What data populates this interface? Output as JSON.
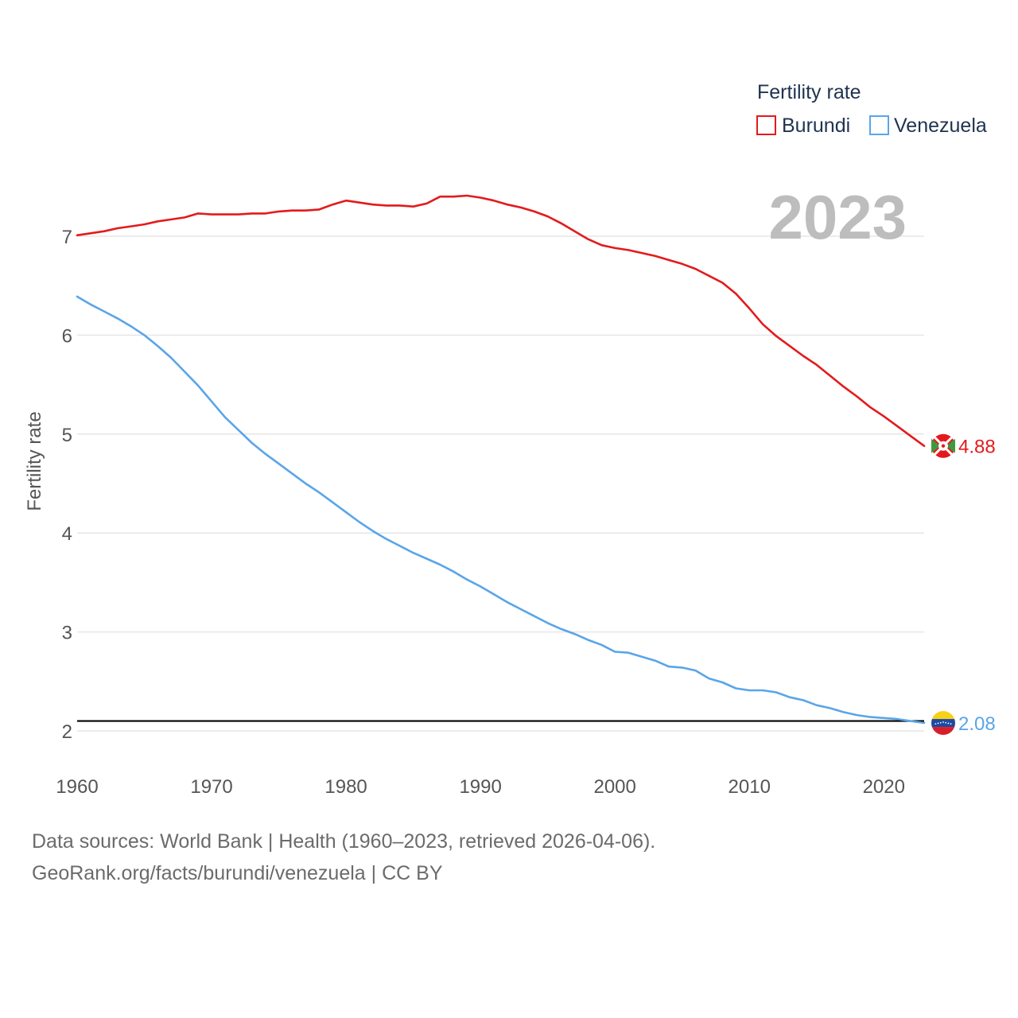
{
  "chart_data": {
    "type": "line",
    "title": "Fertility rate",
    "ylabel": "Fertility rate",
    "xlabel": "",
    "year_label": "2023",
    "xlim": [
      1960,
      2023
    ],
    "ylim": [
      1.9,
      7.6
    ],
    "x_ticks": [
      "1960",
      "1970",
      "1980",
      "1990",
      "2000",
      "2010",
      "2020"
    ],
    "y_ticks": [
      "2",
      "3",
      "4",
      "5",
      "6",
      "7"
    ],
    "reference_line": 2.1,
    "legend": [
      "Burundi",
      "Venezuela"
    ],
    "x": [
      1960,
      1961,
      1962,
      1963,
      1964,
      1965,
      1966,
      1967,
      1968,
      1969,
      1970,
      1971,
      1972,
      1973,
      1974,
      1975,
      1976,
      1977,
      1978,
      1979,
      1980,
      1981,
      1982,
      1983,
      1984,
      1985,
      1986,
      1987,
      1988,
      1989,
      1990,
      1991,
      1992,
      1993,
      1994,
      1995,
      1996,
      1997,
      1998,
      1999,
      2000,
      2001,
      2002,
      2003,
      2004,
      2005,
      2006,
      2007,
      2008,
      2009,
      2010,
      2011,
      2012,
      2013,
      2014,
      2015,
      2016,
      2017,
      2018,
      2019,
      2020,
      2021,
      2022,
      2023
    ],
    "series": [
      {
        "name": "Burundi",
        "color": "#e31a1c",
        "end_label": "4.88",
        "values": [
          7.01,
          7.03,
          7.05,
          7.08,
          7.1,
          7.12,
          7.15,
          7.17,
          7.19,
          7.23,
          7.22,
          7.22,
          7.22,
          7.23,
          7.23,
          7.25,
          7.26,
          7.26,
          7.27,
          7.32,
          7.36,
          7.34,
          7.32,
          7.31,
          7.31,
          7.3,
          7.33,
          7.4,
          7.4,
          7.41,
          7.39,
          7.36,
          7.32,
          7.29,
          7.25,
          7.2,
          7.13,
          7.05,
          6.97,
          6.91,
          6.88,
          6.86,
          6.83,
          6.8,
          6.76,
          6.72,
          6.67,
          6.6,
          6.53,
          6.42,
          6.27,
          6.11,
          5.99,
          5.89,
          5.79,
          5.7,
          5.59,
          5.48,
          5.38,
          5.27,
          5.18,
          5.08,
          4.98,
          4.88
        ]
      },
      {
        "name": "Venezuela",
        "color": "#5aa5e8",
        "end_label": "2.08",
        "values": [
          6.39,
          6.31,
          6.24,
          6.17,
          6.09,
          6.0,
          5.89,
          5.77,
          5.63,
          5.49,
          5.33,
          5.17,
          5.04,
          4.91,
          4.8,
          4.7,
          4.6,
          4.5,
          4.41,
          4.31,
          4.21,
          4.11,
          4.02,
          3.94,
          3.87,
          3.8,
          3.74,
          3.68,
          3.61,
          3.53,
          3.46,
          3.38,
          3.3,
          3.23,
          3.16,
          3.09,
          3.03,
          2.98,
          2.92,
          2.87,
          2.8,
          2.79,
          2.75,
          2.71,
          2.65,
          2.64,
          2.61,
          2.53,
          2.49,
          2.43,
          2.41,
          2.41,
          2.39,
          2.34,
          2.31,
          2.26,
          2.23,
          2.19,
          2.16,
          2.14,
          2.13,
          2.12,
          2.1,
          2.08
        ]
      }
    ]
  },
  "footer": {
    "line1": "Data sources: World Bank | Health (1960–2023, retrieved 2026-04-06).",
    "line2": "GeoRank.org/facts/burundi/venezuela | CC BY"
  }
}
